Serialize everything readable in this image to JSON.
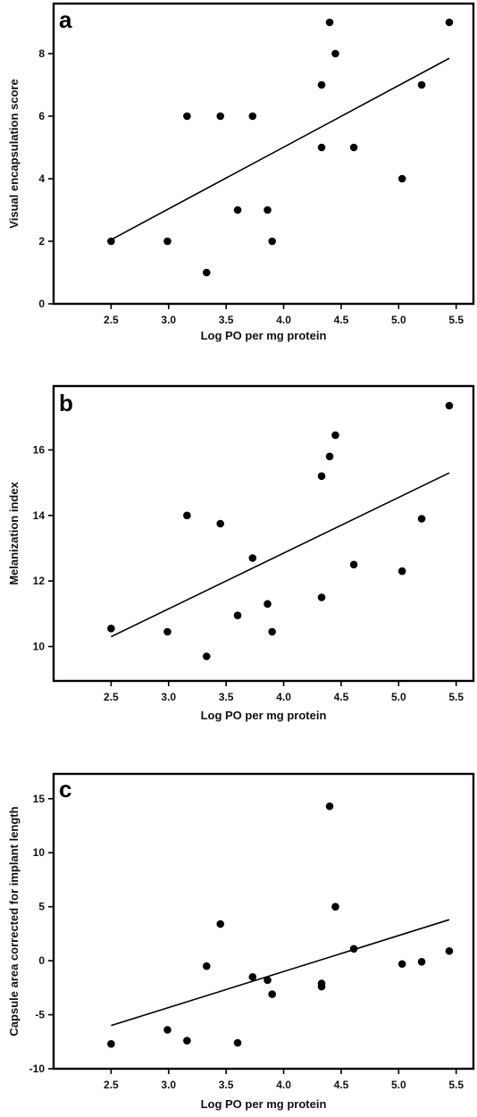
{
  "chart_data": [
    {
      "type": "scatter",
      "panel_label": "a",
      "xlabel": "Log PO per mg protein",
      "ylabel": "Visual encapsulation score",
      "xlim": [
        2.0,
        5.65
      ],
      "ylim": [
        0,
        9.6
      ],
      "xticks": [
        2.5,
        3.0,
        3.5,
        4.0,
        4.5,
        5.0,
        5.5
      ],
      "xtick_labels": [
        "2.5",
        "3.0",
        "3.5",
        "4.0",
        "4.5",
        "5.0",
        "5.5"
      ],
      "yticks": [
        0,
        2,
        4,
        6,
        8
      ],
      "ytick_labels": [
        "0",
        "2",
        "4",
        "6",
        "8"
      ],
      "points": [
        {
          "x": 2.5,
          "y": 2
        },
        {
          "x": 2.99,
          "y": 2
        },
        {
          "x": 3.16,
          "y": 6
        },
        {
          "x": 3.33,
          "y": 1
        },
        {
          "x": 3.45,
          "y": 6
        },
        {
          "x": 3.6,
          "y": 3
        },
        {
          "x": 3.73,
          "y": 6
        },
        {
          "x": 3.86,
          "y": 3
        },
        {
          "x": 3.9,
          "y": 2
        },
        {
          "x": 4.33,
          "y": 7
        },
        {
          "x": 4.33,
          "y": 5
        },
        {
          "x": 4.4,
          "y": 9
        },
        {
          "x": 4.45,
          "y": 8
        },
        {
          "x": 4.61,
          "y": 5
        },
        {
          "x": 5.03,
          "y": 4
        },
        {
          "x": 5.2,
          "y": 7
        },
        {
          "x": 5.44,
          "y": 9
        }
      ],
      "fit_line": [
        {
          "x": 2.5,
          "y": 2.05
        },
        {
          "x": 5.44,
          "y": 7.85
        }
      ]
    },
    {
      "type": "scatter",
      "panel_label": "b",
      "xlabel": "Log PO per mg protein",
      "ylabel": "Melanization index",
      "xlim": [
        2.0,
        5.65
      ],
      "ylim": [
        8.95,
        17.95
      ],
      "xticks": [
        2.5,
        3.0,
        3.5,
        4.0,
        4.5,
        5.0,
        5.5
      ],
      "xtick_labels": [
        "2.5",
        "3.0",
        "3.5",
        "4.0",
        "4.5",
        "5.0",
        "5.5"
      ],
      "yticks": [
        10,
        12,
        14,
        16
      ],
      "ytick_labels": [
        "10",
        "12",
        "14",
        "16"
      ],
      "points": [
        {
          "x": 2.5,
          "y": 10.55
        },
        {
          "x": 2.99,
          "y": 10.45
        },
        {
          "x": 3.16,
          "y": 14.0
        },
        {
          "x": 3.33,
          "y": 9.7
        },
        {
          "x": 3.45,
          "y": 13.75
        },
        {
          "x": 3.6,
          "y": 10.95
        },
        {
          "x": 3.73,
          "y": 12.7
        },
        {
          "x": 3.86,
          "y": 11.3
        },
        {
          "x": 3.9,
          "y": 10.45
        },
        {
          "x": 4.33,
          "y": 15.2
        },
        {
          "x": 4.33,
          "y": 11.5
        },
        {
          "x": 4.4,
          "y": 15.8
        },
        {
          "x": 4.45,
          "y": 16.45
        },
        {
          "x": 4.61,
          "y": 12.5
        },
        {
          "x": 5.03,
          "y": 12.3
        },
        {
          "x": 5.2,
          "y": 13.9
        },
        {
          "x": 5.44,
          "y": 17.35
        }
      ],
      "fit_line": [
        {
          "x": 2.5,
          "y": 10.3
        },
        {
          "x": 5.44,
          "y": 15.3
        }
      ]
    },
    {
      "type": "scatter",
      "panel_label": "c",
      "xlabel": "Log PO per mg protein",
      "ylabel": "Capsule area corrected for implant length",
      "xlim": [
        2.0,
        5.65
      ],
      "ylim": [
        -10,
        17.3
      ],
      "xticks": [
        2.5,
        3.0,
        3.5,
        4.0,
        4.5,
        5.0,
        5.5
      ],
      "xtick_labels": [
        "2.5",
        "3.0",
        "3.5",
        "4.0",
        "4.5",
        "5.0",
        "5.5"
      ],
      "yticks": [
        -10,
        -5,
        0,
        5,
        10,
        15
      ],
      "ytick_labels": [
        "-10",
        "-5",
        "0",
        "5",
        "10",
        "15"
      ],
      "points": [
        {
          "x": 2.5,
          "y": -7.7
        },
        {
          "x": 2.99,
          "y": -6.4
        },
        {
          "x": 3.16,
          "y": -7.4
        },
        {
          "x": 3.33,
          "y": -0.5
        },
        {
          "x": 3.45,
          "y": 3.4
        },
        {
          "x": 3.6,
          "y": -7.6
        },
        {
          "x": 3.73,
          "y": -1.5
        },
        {
          "x": 3.86,
          "y": -1.8
        },
        {
          "x": 3.9,
          "y": -3.1
        },
        {
          "x": 4.33,
          "y": -2.1
        },
        {
          "x": 4.33,
          "y": -2.4
        },
        {
          "x": 4.4,
          "y": 14.3
        },
        {
          "x": 4.45,
          "y": 5.0
        },
        {
          "x": 4.61,
          "y": 1.1
        },
        {
          "x": 5.03,
          "y": -0.3
        },
        {
          "x": 5.2,
          "y": -0.1
        },
        {
          "x": 5.44,
          "y": 0.9
        }
      ],
      "fit_line": [
        {
          "x": 2.5,
          "y": -6.0
        },
        {
          "x": 5.44,
          "y": 3.8
        }
      ]
    }
  ]
}
